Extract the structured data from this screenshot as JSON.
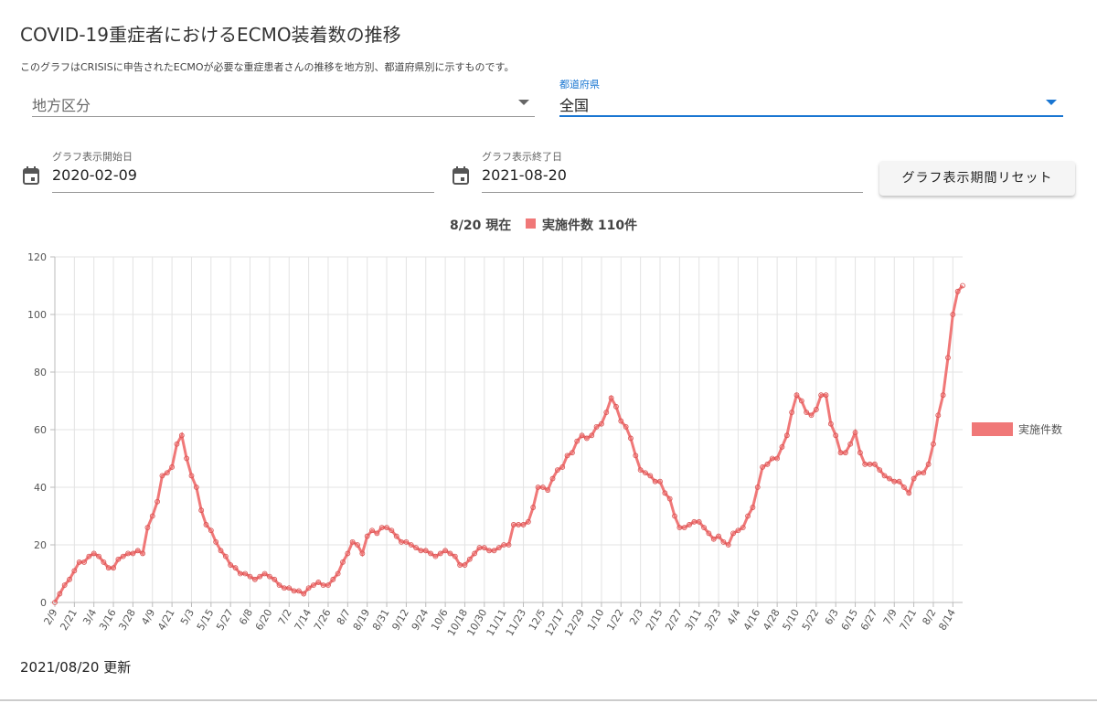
{
  "header": {
    "title": "COVID-19重症者におけるECMO装着数の推移",
    "description": "このグラフはCRISISに申告されたECMOが必要な重症患者さんの推移を地方別、都道府県別に示すものです。"
  },
  "filters": {
    "region_placeholder": "地方区分",
    "prefecture_label": "都道府県",
    "prefecture_value": "全国",
    "start_label": "グラフ表示開始日",
    "start_value": "2020-02-09",
    "end_label": "グラフ表示終了日",
    "end_value": "2021-08-20",
    "reset_button": "グラフ表示期間リセット"
  },
  "summary": {
    "date": "8/20 現在",
    "text": "実施件数 110件"
  },
  "footer": {
    "updated": "2021/08/20 更新"
  },
  "chart_data": {
    "type": "line",
    "ylim": [
      0,
      120
    ],
    "yticks": [
      0,
      20,
      40,
      60,
      80,
      100,
      120
    ],
    "grid": true,
    "legend": "right",
    "categories": [
      "2/9",
      null,
      null,
      null,
      "2/21",
      null,
      null,
      null,
      "3/4",
      null,
      null,
      null,
      "3/16",
      null,
      null,
      null,
      "3/28",
      null,
      null,
      null,
      "4/9",
      null,
      null,
      null,
      "4/21",
      null,
      null,
      null,
      "5/3",
      null,
      null,
      null,
      "5/15",
      null,
      null,
      null,
      "5/27",
      null,
      null,
      null,
      "6/8",
      null,
      null,
      null,
      "6/20",
      null,
      null,
      null,
      "7/2",
      null,
      null,
      null,
      "7/14",
      null,
      null,
      null,
      "7/26",
      null,
      null,
      null,
      "8/7",
      null,
      null,
      null,
      "8/19",
      null,
      null,
      null,
      "8/31",
      null,
      null,
      null,
      "9/12",
      null,
      null,
      null,
      "9/24",
      null,
      null,
      null,
      "10/6",
      null,
      null,
      null,
      "10/18",
      null,
      null,
      null,
      "10/30",
      null,
      null,
      null,
      "11/11",
      null,
      null,
      null,
      "11/23",
      null,
      null,
      null,
      "12/5",
      null,
      null,
      null,
      "12/17",
      null,
      null,
      null,
      "12/29",
      null,
      null,
      null,
      "1/10",
      null,
      null,
      null,
      "1/22",
      null,
      null,
      null,
      "2/3",
      null,
      null,
      null,
      "2/15",
      null,
      null,
      null,
      "2/27",
      null,
      null,
      null,
      "3/11",
      null,
      null,
      null,
      "3/23",
      null,
      null,
      null,
      "4/4",
      null,
      null,
      null,
      "4/16",
      null,
      null,
      null,
      "4/28",
      null,
      null,
      null,
      "5/10",
      null,
      null,
      null,
      "5/22",
      null,
      null,
      null,
      "6/3",
      null,
      null,
      null,
      "6/15",
      null,
      null,
      null,
      "6/27",
      null,
      null,
      null,
      "7/9",
      null,
      null,
      null,
      "7/21",
      null,
      null,
      null,
      "8/2",
      null,
      null,
      null,
      "8/14",
      null,
      null
    ],
    "series": [
      {
        "name": "実施件数",
        "color": "#f07878",
        "values": [
          0,
          3,
          6,
          8,
          11,
          14,
          14,
          16,
          17,
          16,
          14,
          12,
          12,
          15,
          16,
          17,
          17,
          18,
          17,
          26,
          30,
          35,
          44,
          45,
          47,
          55,
          58,
          50,
          44,
          40,
          32,
          27,
          25,
          21,
          18,
          16,
          13,
          12,
          10,
          10,
          9,
          8,
          9,
          10,
          9,
          8,
          6,
          5,
          5,
          4,
          4,
          3,
          5,
          6,
          7,
          6,
          6,
          8,
          10,
          14,
          17,
          21,
          20,
          17,
          23,
          25,
          24,
          26,
          26,
          25,
          23,
          21,
          21,
          20,
          19,
          18,
          18,
          17,
          16,
          17,
          18,
          17,
          16,
          13,
          13,
          15,
          17,
          19,
          19,
          18,
          18,
          19,
          20,
          20,
          27,
          27,
          27,
          28,
          33,
          40,
          40,
          39,
          43,
          46,
          47,
          51,
          52,
          56,
          58,
          57,
          58,
          61,
          62,
          66,
          71,
          68,
          63,
          61,
          57,
          51,
          46,
          45,
          44,
          42,
          42,
          38,
          36,
          30,
          26,
          26,
          27,
          28,
          28,
          26,
          24,
          22,
          23,
          21,
          20,
          24,
          25,
          26,
          30,
          33,
          40,
          47,
          48,
          50,
          50,
          54,
          58,
          66,
          72,
          70,
          66,
          65,
          67,
          72,
          72,
          62,
          58,
          52,
          52,
          55,
          59,
          52,
          48,
          48,
          48,
          46,
          44,
          43,
          42,
          42,
          40,
          38,
          43,
          45,
          45,
          48,
          55,
          65,
          72,
          85,
          100,
          108,
          110
        ]
      }
    ]
  }
}
